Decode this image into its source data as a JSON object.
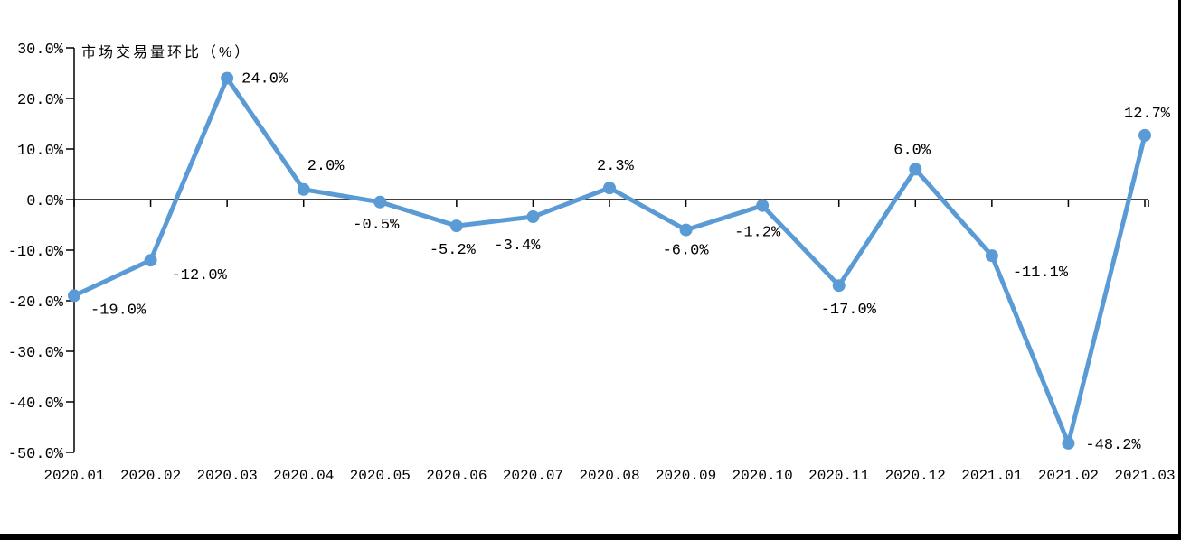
{
  "chart_data": {
    "type": "line",
    "title": "市场交易量环比（%）",
    "categories": [
      "2020.01",
      "2020.02",
      "2020.03",
      "2020.04",
      "2020.05",
      "2020.06",
      "2020.07",
      "2020.08",
      "2020.09",
      "2020.10",
      "2020.11",
      "2020.12",
      "2021.01",
      "2021.02",
      "2021.03"
    ],
    "values": [
      -19.0,
      -12.0,
      24.0,
      2.0,
      -0.5,
      -5.2,
      -3.4,
      2.3,
      -6.0,
      -1.2,
      -17.0,
      6.0,
      -11.1,
      -48.2,
      12.7
    ],
    "point_labels": [
      "-19.0%",
      "-12.0%",
      "24.0%",
      "2.0%",
      "-0.5%",
      "-5.2%",
      "-3.4%",
      "2.3%",
      "-6.0%",
      "-1.2%",
      "-17.0%",
      "6.0%",
      "-11.1%",
      "-48.2%",
      "12.7%"
    ],
    "y_tick_labels": [
      "30.0%",
      "20.0%",
      "10.0%",
      "0.0%",
      "-10.0%",
      "-20.0%",
      "-30.0%",
      "-40.0%",
      "-50.0%"
    ],
    "y_tick_values": [
      30,
      20,
      10,
      0,
      -10,
      -20,
      -30,
      -40,
      -50
    ],
    "ylim": [
      -50,
      30
    ],
    "xlabel": "",
    "ylabel": "",
    "grid": false,
    "legend": "none",
    "line_color": "#5B9BD5",
    "marker_color": "#5B9BD5",
    "axis_color": "#000000",
    "label_color": "#000000",
    "background_color": "#ffffff",
    "border_color": "#000000"
  }
}
